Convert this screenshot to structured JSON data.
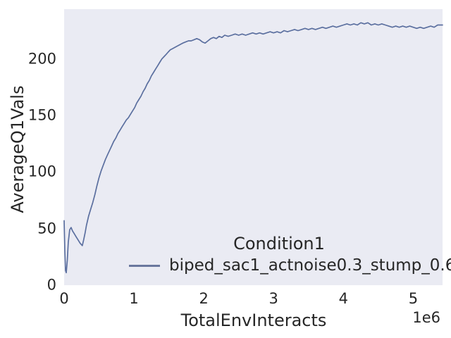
{
  "figure": {
    "background": "#ffffff",
    "panel_background": "#eaebf3",
    "text_color": "#262626"
  },
  "chart_data": {
    "type": "line",
    "title": "",
    "xlabel": "TotalEnvInteracts",
    "ylabel": "AverageQ1Vals",
    "x_offset_label": "1e6",
    "x_unit_multiplier": 1000000,
    "xlim": [
      0,
      5.42
    ],
    "ylim": [
      0,
      244
    ],
    "xticks": [
      0,
      1,
      2,
      3,
      4,
      5
    ],
    "yticks": [
      0,
      50,
      100,
      150,
      200
    ],
    "grid": false,
    "legend": {
      "title": "Condition1",
      "frame": false,
      "position": "lower center"
    },
    "series": [
      {
        "name": "biped_sac1_actnoise0.3_stump_0.6",
        "color": "#5b6f9f",
        "line_width": 1.7,
        "points": [
          [
            0.0,
            57
          ],
          [
            0.01,
            30
          ],
          [
            0.02,
            13
          ],
          [
            0.03,
            11
          ],
          [
            0.045,
            22
          ],
          [
            0.06,
            38
          ],
          [
            0.08,
            49
          ],
          [
            0.1,
            51
          ],
          [
            0.12,
            48
          ],
          [
            0.14,
            46
          ],
          [
            0.17,
            43
          ],
          [
            0.2,
            40
          ],
          [
            0.23,
            37
          ],
          [
            0.26,
            35
          ],
          [
            0.28,
            40
          ],
          [
            0.3,
            46
          ],
          [
            0.32,
            53
          ],
          [
            0.35,
            61
          ],
          [
            0.38,
            67
          ],
          [
            0.41,
            73
          ],
          [
            0.44,
            80
          ],
          [
            0.47,
            88
          ],
          [
            0.5,
            95
          ],
          [
            0.53,
            101
          ],
          [
            0.56,
            106
          ],
          [
            0.59,
            111
          ],
          [
            0.62,
            115
          ],
          [
            0.65,
            119
          ],
          [
            0.68,
            123
          ],
          [
            0.71,
            127
          ],
          [
            0.74,
            130
          ],
          [
            0.77,
            134
          ],
          [
            0.8,
            137
          ],
          [
            0.83,
            140
          ],
          [
            0.86,
            143
          ],
          [
            0.89,
            146
          ],
          [
            0.92,
            148
          ],
          [
            0.95,
            151
          ],
          [
            0.98,
            154
          ],
          [
            1.01,
            157
          ],
          [
            1.04,
            161
          ],
          [
            1.07,
            164
          ],
          [
            1.1,
            167
          ],
          [
            1.13,
            171
          ],
          [
            1.16,
            174
          ],
          [
            1.19,
            178
          ],
          [
            1.22,
            181
          ],
          [
            1.25,
            185
          ],
          [
            1.28,
            188
          ],
          [
            1.31,
            191
          ],
          [
            1.34,
            194
          ],
          [
            1.37,
            197
          ],
          [
            1.4,
            200
          ],
          [
            1.43,
            202
          ],
          [
            1.46,
            204
          ],
          [
            1.49,
            206
          ],
          [
            1.52,
            208
          ],
          [
            1.55,
            209
          ],
          [
            1.58,
            210
          ],
          [
            1.61,
            211
          ],
          [
            1.64,
            212
          ],
          [
            1.67,
            213
          ],
          [
            1.7,
            214
          ],
          [
            1.74,
            215
          ],
          [
            1.78,
            216
          ],
          [
            1.82,
            216
          ],
          [
            1.86,
            217
          ],
          [
            1.9,
            218
          ],
          [
            1.94,
            217
          ],
          [
            1.98,
            215
          ],
          [
            2.02,
            214
          ],
          [
            2.06,
            216
          ],
          [
            2.1,
            218
          ],
          [
            2.14,
            219
          ],
          [
            2.18,
            218
          ],
          [
            2.22,
            220
          ],
          [
            2.26,
            219
          ],
          [
            2.3,
            221
          ],
          [
            2.35,
            220
          ],
          [
            2.4,
            221
          ],
          [
            2.45,
            222
          ],
          [
            2.5,
            221
          ],
          [
            2.55,
            222
          ],
          [
            2.6,
            221
          ],
          [
            2.65,
            222
          ],
          [
            2.7,
            223
          ],
          [
            2.75,
            222
          ],
          [
            2.8,
            223
          ],
          [
            2.85,
            222
          ],
          [
            2.9,
            223
          ],
          [
            2.95,
            224
          ],
          [
            3.0,
            223
          ],
          [
            3.05,
            224
          ],
          [
            3.1,
            223
          ],
          [
            3.15,
            225
          ],
          [
            3.2,
            224
          ],
          [
            3.25,
            225
          ],
          [
            3.3,
            226
          ],
          [
            3.35,
            225
          ],
          [
            3.4,
            226
          ],
          [
            3.45,
            227
          ],
          [
            3.5,
            226
          ],
          [
            3.55,
            227
          ],
          [
            3.6,
            226
          ],
          [
            3.65,
            227
          ],
          [
            3.7,
            228
          ],
          [
            3.75,
            227
          ],
          [
            3.8,
            228
          ],
          [
            3.85,
            229
          ],
          [
            3.9,
            228
          ],
          [
            3.95,
            229
          ],
          [
            4.0,
            230
          ],
          [
            4.05,
            231
          ],
          [
            4.1,
            230
          ],
          [
            4.15,
            231
          ],
          [
            4.2,
            230
          ],
          [
            4.25,
            232
          ],
          [
            4.3,
            231
          ],
          [
            4.35,
            232
          ],
          [
            4.4,
            230
          ],
          [
            4.45,
            231
          ],
          [
            4.5,
            230
          ],
          [
            4.55,
            231
          ],
          [
            4.6,
            230
          ],
          [
            4.65,
            229
          ],
          [
            4.7,
            228
          ],
          [
            4.75,
            229
          ],
          [
            4.8,
            228
          ],
          [
            4.85,
            229
          ],
          [
            4.9,
            228
          ],
          [
            4.95,
            229
          ],
          [
            5.0,
            228
          ],
          [
            5.05,
            227
          ],
          [
            5.1,
            228
          ],
          [
            5.15,
            227
          ],
          [
            5.2,
            228
          ],
          [
            5.25,
            229
          ],
          [
            5.3,
            228
          ],
          [
            5.35,
            230
          ],
          [
            5.4,
            230
          ],
          [
            5.42,
            230
          ]
        ]
      }
    ]
  }
}
